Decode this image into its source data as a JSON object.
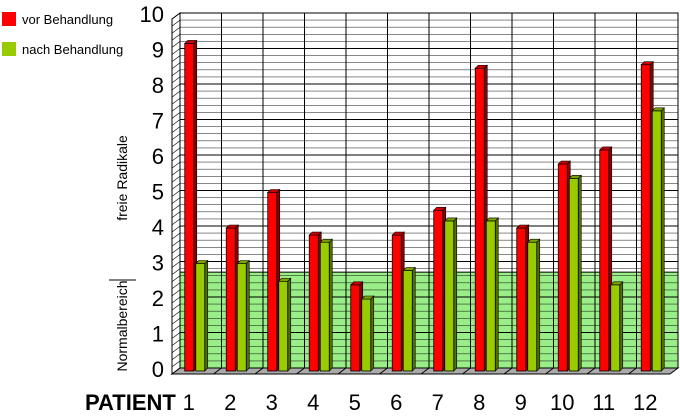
{
  "chart_data": {
    "type": "bar",
    "categories": [
      "1",
      "2",
      "3",
      "4",
      "5",
      "6",
      "7",
      "8",
      "9",
      "10",
      "11",
      "12"
    ],
    "series": [
      {
        "name": "vor Behandlung",
        "color": "#ff0000",
        "values": [
          9.2,
          4.0,
          5.0,
          3.8,
          2.4,
          3.8,
          4.5,
          8.5,
          4.0,
          5.8,
          6.2,
          8.6
        ]
      },
      {
        "name": "nach Behandlung",
        "color": "#99cc00",
        "values": [
          3.0,
          3.0,
          2.5,
          3.6,
          2.0,
          2.8,
          4.2,
          4.2,
          3.6,
          5.4,
          2.4,
          7.3
        ]
      }
    ],
    "xlabel": "PATIENT",
    "ylabel": "freie Radikale",
    "ylim": [
      0,
      10
    ],
    "yticks": [
      0,
      1,
      2,
      3,
      4,
      5,
      6,
      7,
      8,
      9,
      10
    ],
    "grid": true,
    "legend_position": "top-left",
    "normal_range": {
      "label": "Normalbereich",
      "from": 0,
      "to": 2.7,
      "color": "#99ee88"
    }
  }
}
